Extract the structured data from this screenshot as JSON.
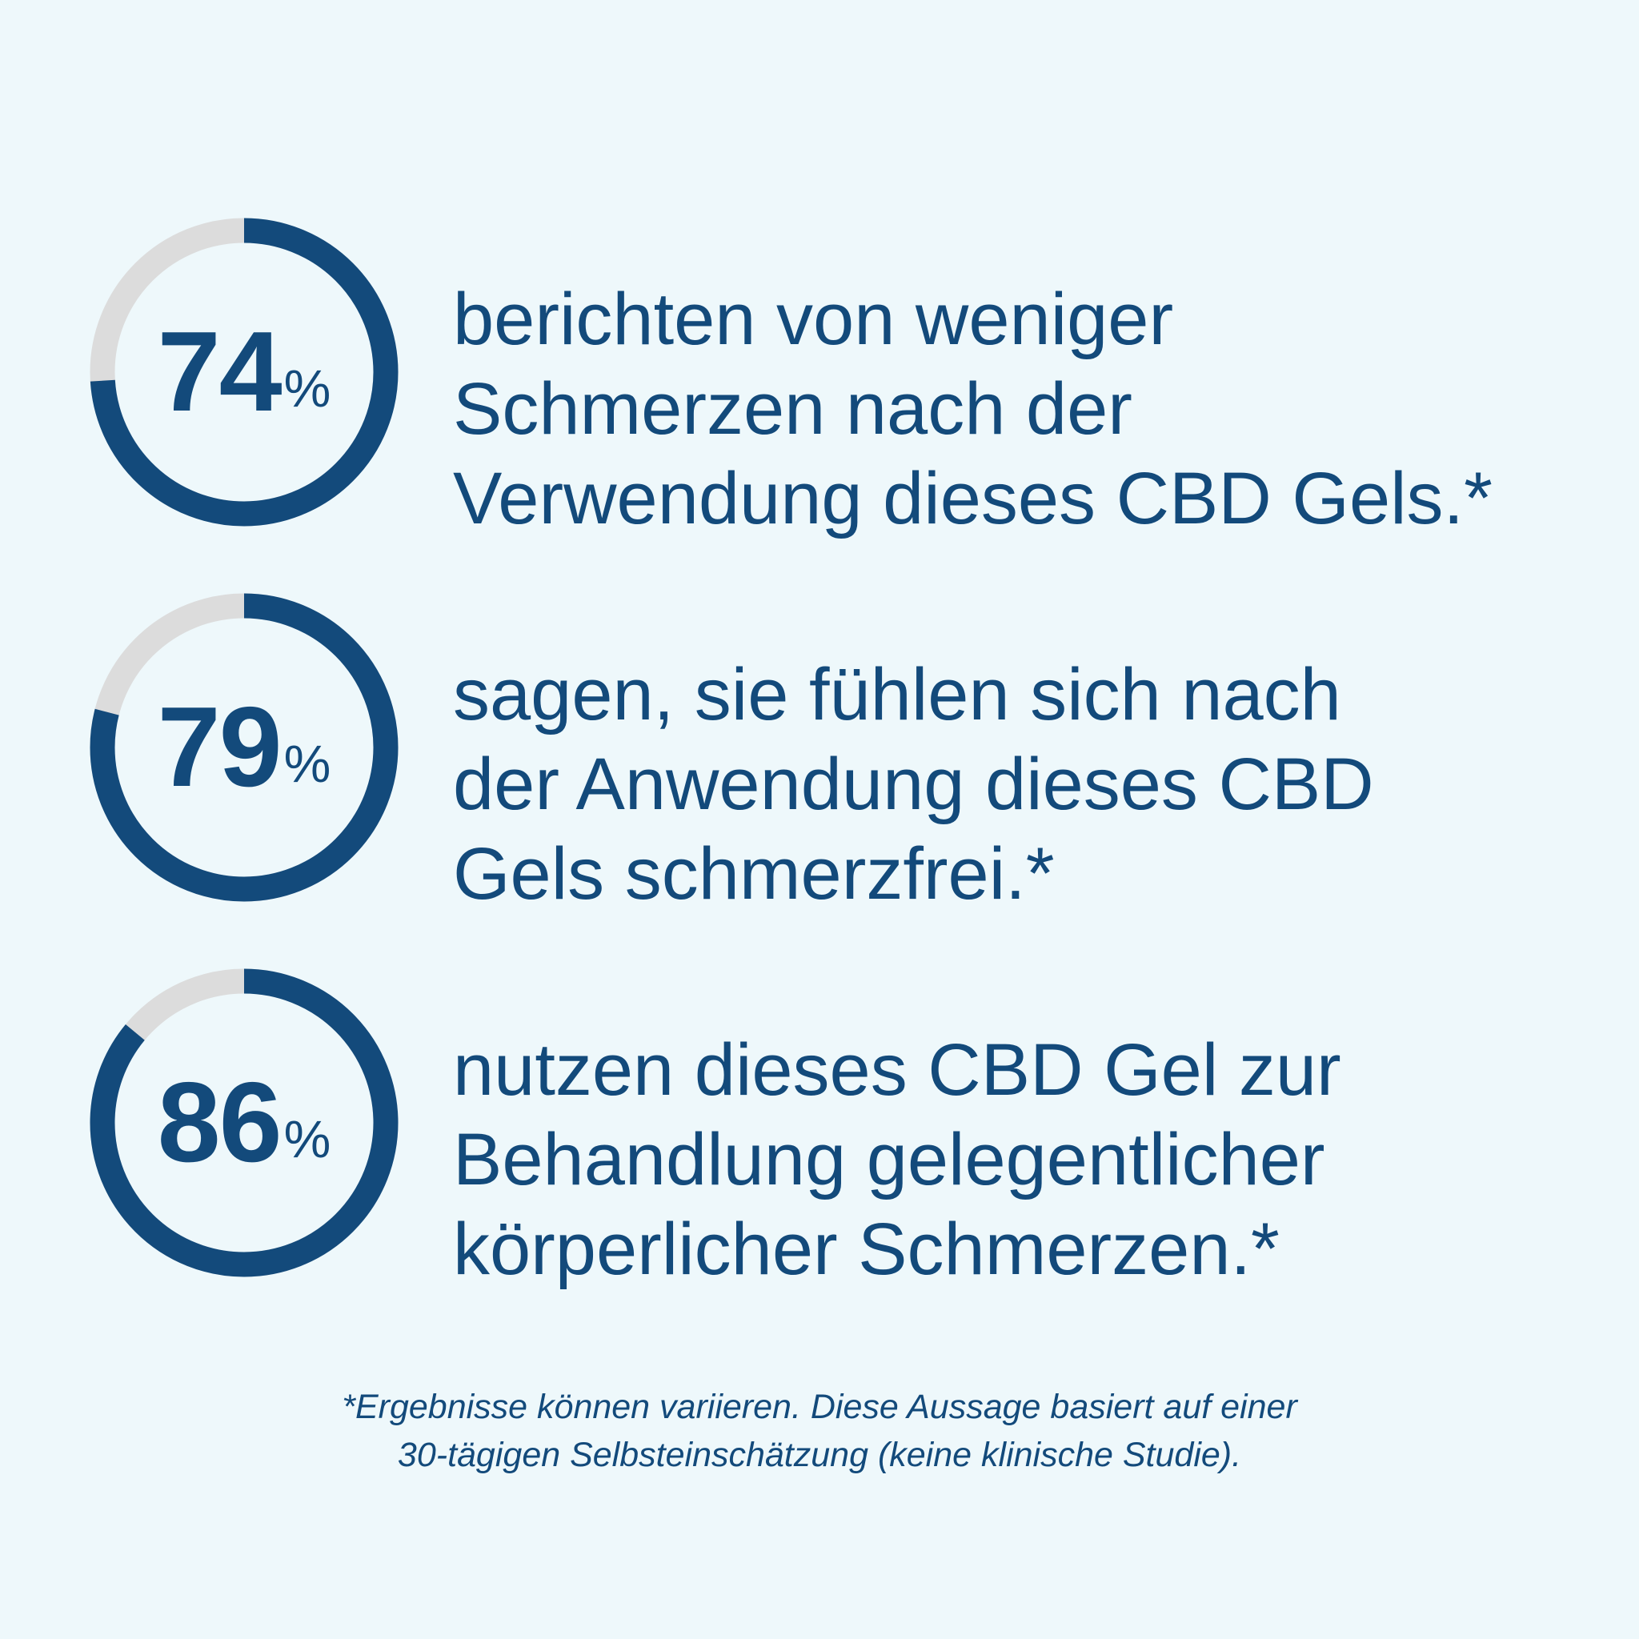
{
  "colors": {
    "accent": "#134a7b",
    "track": "#dcdcdc",
    "background": "#eef8fb"
  },
  "chart_data": {
    "type": "pie",
    "items": [
      {
        "value": 74,
        "unit": "%",
        "text": "berichten von weniger\nSchmerzen nach der\nVerwendung dieses CBD Gels.*"
      },
      {
        "value": 79,
        "unit": "%",
        "text": "sagen, sie fühlen sich nach\nder Anwendung dieses CBD\nGels schmerzfrei.*"
      },
      {
        "value": 86,
        "unit": "%",
        "text": "nutzen dieses CBD Gel zur\nBehandlung gelegentlicher\nkörperlicher Schmerzen.*"
      }
    ]
  },
  "footnote": {
    "line1": "*Ergebnisse können variieren. Diese Aussage basiert auf einer",
    "line2": "30-tägigen Selbsteinschätzung (keine klinische Studie)."
  }
}
